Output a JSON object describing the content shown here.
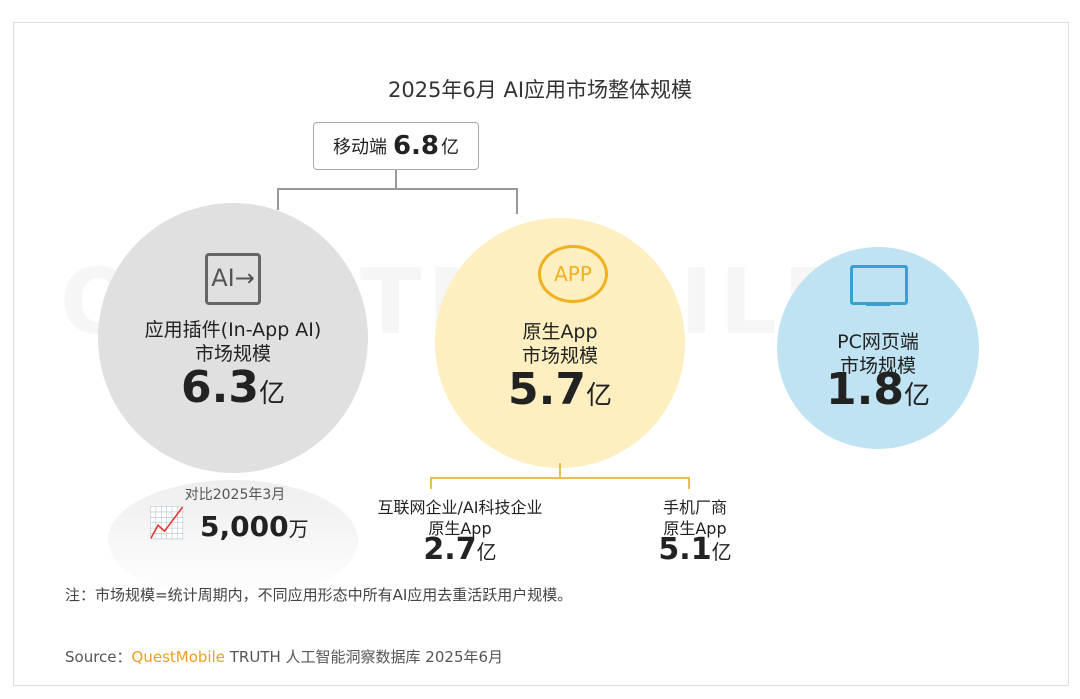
{
  "title": "2025年6月 AI应用市场整体规模",
  "mobile": {
    "label": "移动端",
    "value": "6.8",
    "unit": "亿"
  },
  "watermark": "QUESTMOBILE",
  "inapp": {
    "icon": "ai-plugin-icon",
    "icon_text": "AI",
    "line1": "应用插件(In-App AI)",
    "line2": "市场规模",
    "value": "6.3",
    "unit": "亿",
    "compare_label": "对比2025年3月",
    "growth_icon": "trend-up-icon",
    "growth_value": "5,000",
    "growth_unit": "万"
  },
  "native": {
    "icon": "app-badge-icon",
    "icon_text": "APP",
    "line1": "原生App",
    "line2": "市场规模",
    "value": "5.7",
    "unit": "亿",
    "sub": [
      {
        "line1": "互联网企业/AI科技企业",
        "line2": "原生App",
        "value": "2.7",
        "unit": "亿"
      },
      {
        "line1": "手机厂商",
        "line2": "原生App",
        "value": "5.1",
        "unit": "亿"
      }
    ]
  },
  "pc": {
    "icon": "monitor-icon",
    "line1": "PC网页端",
    "line2": "市场规模",
    "value": "1.8",
    "unit": "亿"
  },
  "note": "注：市场规模=统计周期内，不同应用形态中所有AI应用去重活跃用户规模。",
  "source": {
    "prefix": "Source：",
    "brand": "QuestMobile",
    "rest": "TRUTH 人工智能洞察数据库 2025年6月"
  },
  "colors": {
    "gray": "#e0e0e0",
    "yellow": "#fdefc0",
    "blue": "#bfe3f2",
    "accent": "#f0a020",
    "red": "#e02020"
  }
}
